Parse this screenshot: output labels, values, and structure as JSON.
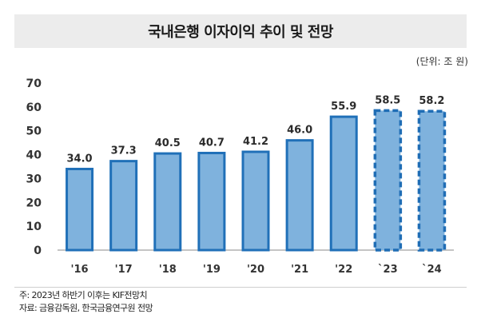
{
  "header": {
    "title": "국내은행 이자이익 추이 및 전망",
    "unit": "(단위: 조 원)"
  },
  "footer": {
    "note": "주: 2023년 하반기 이후는 KIF전망치",
    "source": "자료: 금융감독원, 한국금융연구원 전망"
  },
  "colors": {
    "bar_fill": "#7fb2dd",
    "bar_stroke": "#2070b8",
    "forecast_stroke": "#1f6db5"
  },
  "chart_data": {
    "type": "bar",
    "title": "국내은행 이자이익 추이 및 전망",
    "xlabel": "",
    "ylabel": "",
    "unit": "(단위: 조 원)",
    "categories": [
      "'16",
      "'17",
      "'18",
      "'19",
      "'20",
      "'21",
      "'22",
      "`23",
      "`24"
    ],
    "values": [
      34.0,
      37.3,
      40.5,
      40.7,
      41.2,
      46.0,
      55.9,
      58.5,
      58.2
    ],
    "value_labels": [
      "34.0",
      "37.3",
      "40.5",
      "40.7",
      "41.2",
      "46.0",
      "55.9",
      "58.5",
      "58.2"
    ],
    "forecast": [
      false,
      false,
      false,
      false,
      false,
      false,
      false,
      true,
      true
    ],
    "ylim": [
      0,
      70
    ],
    "yticks": [
      0,
      10,
      20,
      30,
      40,
      50,
      60,
      70
    ],
    "grid": false,
    "legend": "none"
  }
}
